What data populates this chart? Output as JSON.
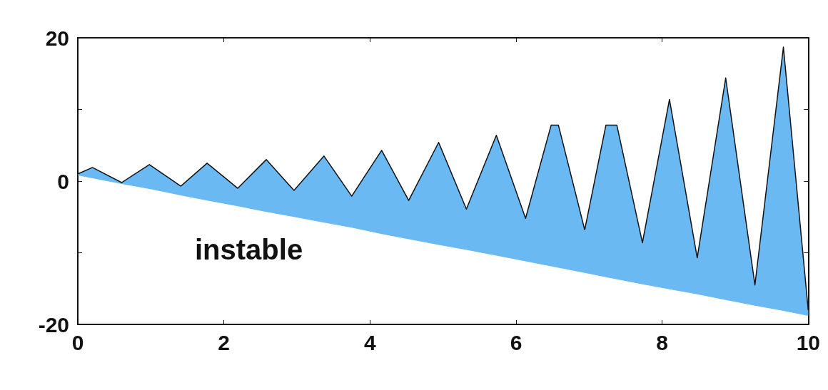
{
  "chart_data": {
    "type": "line",
    "annotations": [
      "instable"
    ],
    "xlim": [
      0,
      10
    ],
    "xticks": [
      0,
      2,
      4,
      6,
      8,
      10
    ],
    "ylim": [
      -20,
      20
    ],
    "yticks": [
      -20,
      {
        "value": -10,
        "label": null
      },
      0,
      {
        "value": 10,
        "label": null
      },
      20
    ],
    "grid": false,
    "series": [
      {
        "color": "#111111",
        "x": [
          0,
          0.2,
          0.6,
          0.98,
          1.41,
          1.77,
          2.19,
          2.58,
          2.96,
          3.37,
          3.75,
          4.16,
          4.53,
          4.94,
          5.32,
          5.73,
          6.13,
          6.48,
          6.58,
          6.94,
          7.23,
          7.38,
          7.73,
          8.1,
          8.48,
          8.87,
          9.27,
          9.66,
          10
        ],
        "values": [
          1.0,
          1.9,
          -0.2,
          2.3,
          -0.7,
          2.5,
          -1.0,
          3.0,
          -1.3,
          3.5,
          -2.1,
          4.3,
          -2.7,
          5.4,
          -3.9,
          6.4,
          -5.2,
          7.8,
          7.8,
          -6.8,
          7.8,
          7.8,
          -8.6,
          11.4,
          -10.7,
          14.4,
          -14.5,
          18.7,
          -18
        ],
        "upper": [
          1.0,
          1.9,
          -0.2,
          2.3,
          -0.7,
          2.5,
          -1.0,
          3.0,
          -1.3,
          3.5,
          -2.1,
          4.3,
          -2.7,
          5.4,
          -3.9,
          6.4,
          -5.2,
          7.8,
          7.8,
          -6.8,
          7.8,
          7.8,
          -8.6,
          11.4,
          -10.7,
          14.4,
          -14.5,
          18.7,
          -18
        ],
        "lower": [
          0.8,
          0.4,
          -0.4,
          -1.1,
          -2.0,
          -2.7,
          -3.5,
          -4.3,
          -5.0,
          -5.8,
          -6.5,
          -7.4,
          -8.1,
          -8.9,
          -9.6,
          -10.4,
          -11.2,
          -11.9,
          -12.1,
          -12.8,
          -13.4,
          -13.7,
          -14.4,
          -15.1,
          -15.8,
          -16.6,
          -17.4,
          -18.1,
          -18.8
        ]
      }
    ]
  }
}
